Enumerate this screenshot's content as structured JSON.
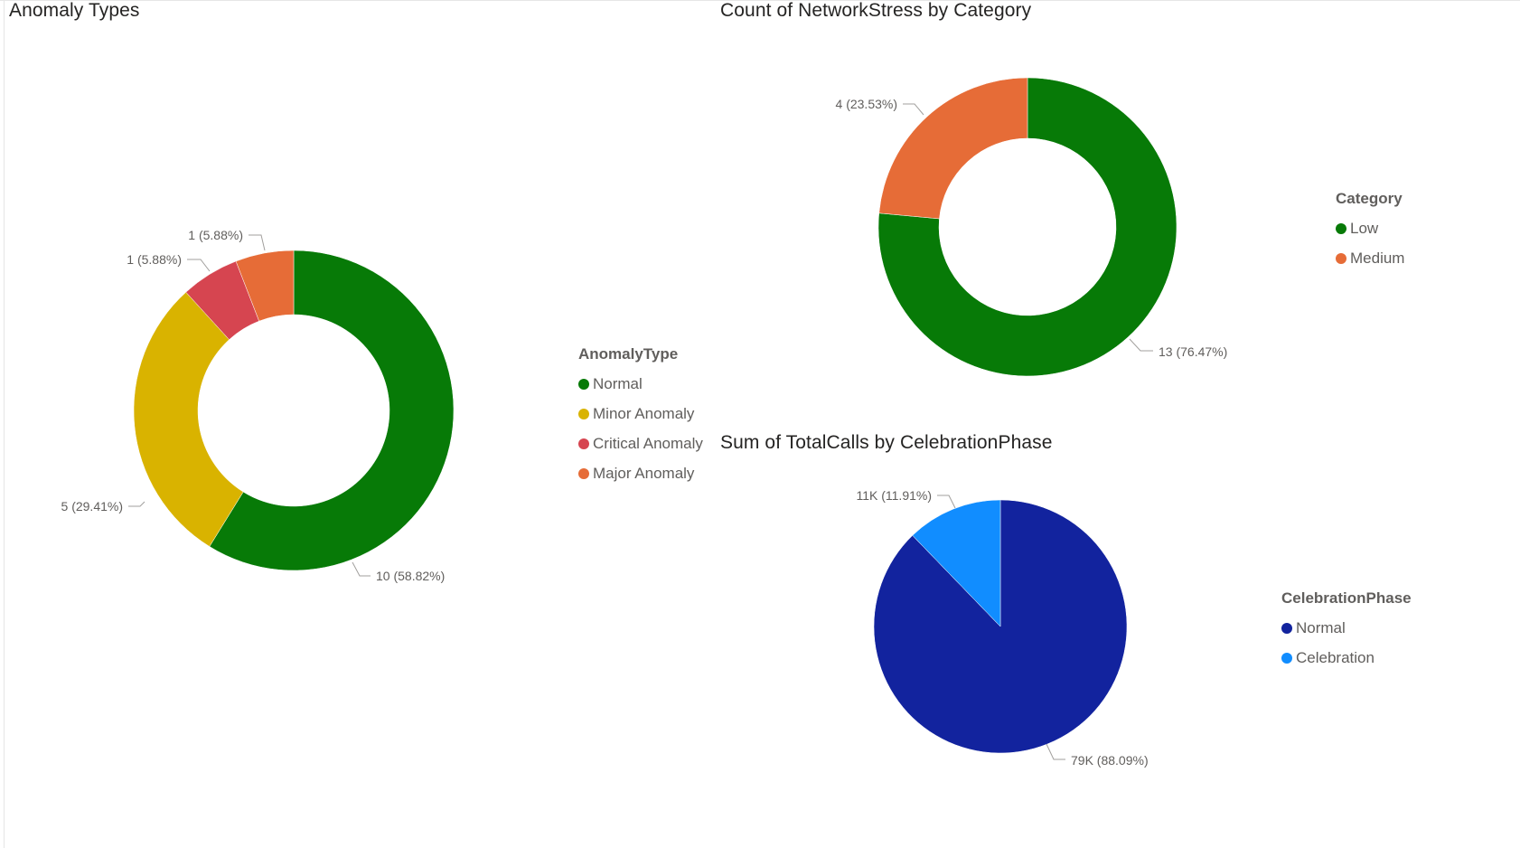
{
  "chart_data": [
    {
      "type": "donut",
      "title": "Anomaly Types",
      "legend_title": "AnomalyType",
      "legend_position": "right",
      "categories": [
        "Normal",
        "Minor Anomaly",
        "Critical Anomaly",
        "Major Anomaly"
      ],
      "values": [
        10,
        5,
        1,
        1
      ],
      "data_labels": [
        "10 (58.82%)",
        "5 (29.41%)",
        "1 (5.88%)",
        "1 (5.88%)"
      ],
      "colors": [
        "#077a07",
        "#d9b300",
        "#d64550",
        "#e66c37"
      ]
    },
    {
      "type": "donut",
      "title": "Count of NetworkStress by Category",
      "legend_title": "Category",
      "legend_position": "right",
      "categories": [
        "Low",
        "Medium"
      ],
      "values": [
        13,
        4
      ],
      "data_labels": [
        "13 (76.47%)",
        "4 (23.53%)"
      ],
      "colors": [
        "#077a07",
        "#e66c37"
      ]
    },
    {
      "type": "pie",
      "title": "Sum of TotalCalls by CelebrationPhase",
      "legend_title": "CelebrationPhase",
      "legend_position": "right",
      "categories": [
        "Normal",
        "Celebration"
      ],
      "values": [
        79,
        11
      ],
      "data_labels": [
        "79K (88.09%)",
        "11K (11.91%)"
      ],
      "colors": [
        "#12239e",
        "#118dff"
      ]
    }
  ]
}
